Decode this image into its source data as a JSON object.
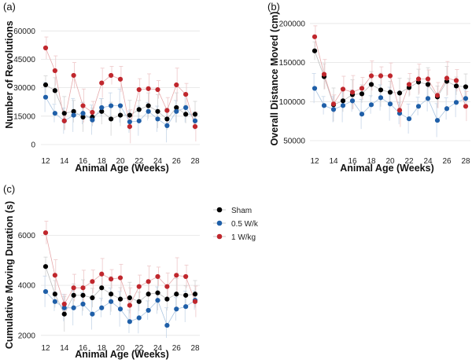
{
  "legend": {
    "entries": [
      {
        "name": "Sham",
        "color": "#000000"
      },
      {
        "name": "0.5 W/k",
        "color": "#1f5fa8"
      },
      {
        "name": "1 W/kg",
        "color": "#c0272d"
      }
    ]
  },
  "chart_data": [
    {
      "type": "scatter",
      "panel_label": "(a)",
      "ylabel": "Number of Revolutions",
      "xlabel": "Animal Age (Weeks)",
      "ylim": [
        0,
        68000
      ],
      "yticks": [
        0,
        15000,
        30000,
        45000,
        60000
      ],
      "xticks": [
        12,
        14,
        16,
        18,
        20,
        22,
        24,
        26,
        28
      ],
      "x": [
        12,
        13,
        14,
        15,
        16,
        17,
        18,
        19,
        20,
        21,
        22,
        23,
        24,
        25,
        26,
        27,
        28
      ],
      "series": [
        {
          "name": "Sham",
          "values": [
            31500,
            28500,
            16500,
            17500,
            14500,
            14500,
            17500,
            13500,
            15500,
            15500,
            18500,
            20500,
            17500,
            13500,
            19500,
            16000,
            16000
          ]
        },
        {
          "name": "0.5 W/k",
          "values": [
            25000,
            16500,
            12500,
            15500,
            16500,
            13000,
            19500,
            20500,
            20500,
            12000,
            12500,
            17500,
            13500,
            10000,
            17500,
            19500,
            12500
          ]
        },
        {
          "name": "1 W/kg",
          "values": [
            51000,
            39000,
            12500,
            36500,
            20500,
            17000,
            32500,
            36500,
            34500,
            9500,
            29000,
            29500,
            29000,
            18000,
            31500,
            26500,
            9500
          ]
        }
      ]
    },
    {
      "type": "scatter",
      "panel_label": "(b)",
      "ylabel": "Overall Distance Moved (cm)",
      "xlabel": "Animal Age (Weeks)",
      "ylim": [
        45000,
        210000
      ],
      "yticks": [
        50000,
        100000,
        150000,
        200000
      ],
      "xticks": [
        12,
        14,
        16,
        18,
        20,
        22,
        24,
        26,
        28
      ],
      "x": [
        12,
        13,
        14,
        15,
        16,
        17,
        18,
        19,
        20,
        21,
        22,
        23,
        24,
        25,
        26,
        27,
        28
      ],
      "series": [
        {
          "name": "Sham",
          "values": [
            165000,
            132000,
            96000,
            101000,
            109000,
            110000,
            122000,
            115000,
            112000,
            111000,
            118000,
            125000,
            122000,
            106000,
            126000,
            120000,
            119000
          ]
        },
        {
          "name": "0.5 W/k",
          "values": [
            117000,
            95000,
            90000,
            95000,
            101000,
            84000,
            96000,
            105000,
            97000,
            85000,
            78000,
            94000,
            104000,
            76000,
            91000,
            99000,
            104000
          ]
        },
        {
          "name": "1 W/kg",
          "values": [
            183000,
            135000,
            97000,
            116000,
            112000,
            117000,
            133000,
            133000,
            133000,
            89000,
            122000,
            129000,
            129000,
            108000,
            130000,
            127000,
            94000
          ]
        }
      ]
    },
    {
      "type": "scatter",
      "panel_label": "(c)",
      "ylabel": "Cumulative Moving Duration (s)",
      "xlabel": "Animal Age (Weeks)",
      "ylim": [
        1900,
        7300
      ],
      "yticks": [
        2000,
        4000,
        6000
      ],
      "xticks": [
        12,
        14,
        16,
        18,
        20,
        22,
        24,
        26,
        28
      ],
      "x": [
        12,
        13,
        14,
        15,
        16,
        17,
        18,
        19,
        20,
        21,
        22,
        23,
        24,
        25,
        26,
        27,
        28
      ],
      "series": [
        {
          "name": "Sham",
          "values": [
            4750,
            3650,
            2850,
            3600,
            3600,
            3500,
            3900,
            3650,
            3450,
            3500,
            3350,
            3650,
            3700,
            3450,
            3650,
            3600,
            3650
          ]
        },
        {
          "name": "0.5 W/k",
          "values": [
            3750,
            3350,
            3100,
            3100,
            3250,
            2850,
            3100,
            3350,
            3050,
            2550,
            2700,
            3000,
            3400,
            2400,
            3050,
            3150,
            3400
          ]
        },
        {
          "name": "1 W/kg",
          "values": [
            6100,
            4400,
            3250,
            3900,
            3900,
            4150,
            4450,
            4250,
            4300,
            3200,
            3950,
            4150,
            4350,
            3950,
            4400,
            4350,
            3350
          ]
        }
      ]
    }
  ]
}
